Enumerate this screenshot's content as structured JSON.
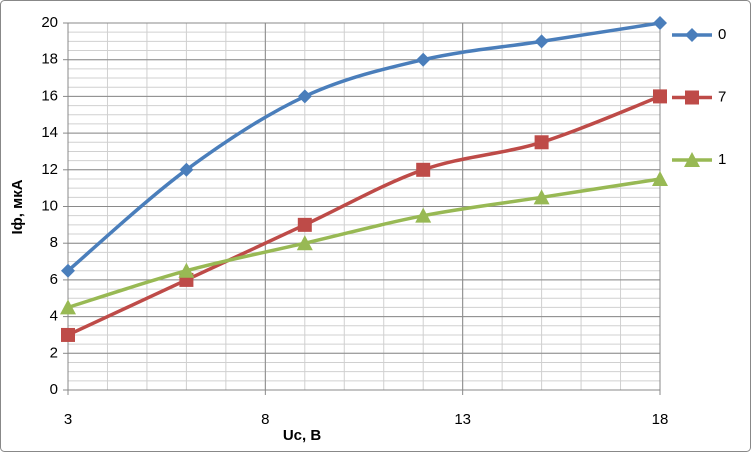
{
  "chart_data": {
    "type": "line",
    "smooth": true,
    "x_label": "Uc, B",
    "y_label": "Iф, мкА",
    "x": [
      3,
      6,
      9,
      12,
      15,
      18
    ],
    "series": [
      {
        "name": "0",
        "color": "#4a7ebb",
        "marker": "diamond",
        "values": [
          6.5,
          12,
          16,
          18,
          19,
          20
        ]
      },
      {
        "name": "7",
        "color": "#be4b48",
        "marker": "square",
        "values": [
          3,
          6,
          9,
          12,
          13.5,
          16
        ]
      },
      {
        "name": "1",
        "color": "#98b954",
        "marker": "triangle",
        "values": [
          4.5,
          6.5,
          8,
          9.5,
          10.5,
          11.5
        ]
      }
    ],
    "xlim": [
      3,
      18
    ],
    "xticks": [
      3,
      8,
      13,
      18
    ],
    "ylim": [
      0,
      20
    ],
    "yticks": [
      0,
      2,
      4,
      6,
      8,
      10,
      12,
      14,
      16,
      18,
      20
    ],
    "grid": true,
    "minor_grid": true,
    "legend": "right"
  }
}
